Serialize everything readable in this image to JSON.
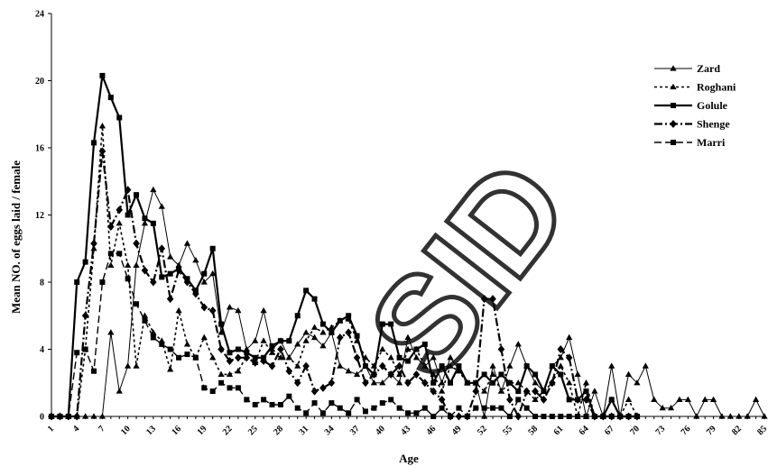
{
  "chart_data": {
    "type": "line",
    "xlabel": "Age",
    "ylabel": "Mean NO. of eggs laid / female",
    "xlim": [
      1,
      85
    ],
    "ylim": [
      0,
      24
    ],
    "yticks": [
      "0",
      "4",
      "8",
      "12",
      "16",
      "20",
      "24"
    ],
    "xticks": [
      "1",
      "4",
      "7",
      "10",
      "13",
      "16",
      "19",
      "22",
      "25",
      "28",
      "31",
      "34",
      "37",
      "40",
      "43",
      "46",
      "49",
      "52",
      "55",
      "58",
      "61",
      "64",
      "67",
      "70",
      "73",
      "76",
      "79",
      "82",
      "85"
    ],
    "legend_position": "top-right",
    "watermark": "SID",
    "series": [
      {
        "name": "Zard",
        "style": "solid-thin",
        "marker": "triangle",
        "x": [
          1,
          2,
          3,
          4,
          5,
          6,
          7,
          8,
          9,
          10,
          11,
          12,
          13,
          14,
          15,
          16,
          17,
          18,
          19,
          20,
          21,
          22,
          23,
          24,
          25,
          26,
          27,
          28,
          29,
          30,
          31,
          32,
          33,
          34,
          35,
          36,
          37,
          38,
          39,
          40,
          41,
          42,
          43,
          44,
          45,
          46,
          47,
          48,
          49,
          50,
          51,
          52,
          53,
          54,
          55,
          56,
          57,
          58,
          59,
          60,
          61,
          62,
          63,
          64,
          65,
          66,
          67,
          68,
          69,
          70,
          71,
          72,
          73,
          74,
          75,
          76,
          77,
          78,
          79,
          80,
          81,
          82,
          83,
          84,
          85
        ],
        "y": [
          0,
          0,
          0,
          0,
          0,
          0,
          0,
          5,
          1.5,
          3,
          9,
          11.5,
          13.5,
          12.5,
          9.5,
          9,
          10.3,
          9.3,
          8,
          8.5,
          5,
          6.5,
          6.3,
          4,
          4.5,
          6.3,
          4,
          4.5,
          3.5,
          4.3,
          5,
          4.7,
          4.2,
          5,
          3,
          2.7,
          2.5,
          3,
          2,
          2,
          2.5,
          2,
          4.7,
          3.5,
          3,
          3.5,
          2,
          3.5,
          2.8,
          2,
          2,
          0,
          3,
          1.5,
          3,
          4.3,
          3,
          2,
          1.5,
          3,
          3.5,
          4.7,
          2.5,
          0,
          1.5,
          0,
          3,
          0,
          2.5,
          2,
          3,
          1,
          0.5,
          0.5,
          1,
          1,
          0,
          1,
          1,
          0,
          0,
          0,
          0,
          1,
          0
        ]
      },
      {
        "name": "Roghani",
        "style": "dashed",
        "marker": "triangle",
        "x": [
          1,
          2,
          3,
          4,
          5,
          6,
          7,
          8,
          9,
          10,
          11,
          12,
          13,
          14,
          15,
          16,
          17,
          18,
          19,
          20,
          21,
          22,
          23,
          24,
          25,
          26,
          27,
          28,
          29,
          30,
          31,
          32,
          33,
          34,
          35,
          36,
          37,
          38,
          39,
          40,
          41,
          42,
          43,
          44,
          45,
          46,
          47,
          48,
          49,
          50,
          51,
          52,
          53,
          54,
          55,
          56,
          57,
          58,
          59,
          60,
          61,
          62,
          63,
          64,
          65,
          66,
          67,
          68,
          69,
          70
        ],
        "y": [
          0,
          0,
          0,
          0,
          4,
          10,
          17.3,
          9,
          11.5,
          9,
          3,
          6,
          5,
          4.5,
          2.8,
          6.3,
          4.3,
          3.5,
          4.7,
          3.5,
          2.5,
          2.5,
          2.7,
          3.6,
          3.2,
          4.5,
          3.8,
          3.5,
          3.5,
          3,
          4.5,
          5.3,
          5,
          5.3,
          5.7,
          5.8,
          4.5,
          3.5,
          3,
          4,
          3.5,
          2.5,
          4,
          4,
          3,
          2.5,
          1.5,
          3,
          2.7,
          2,
          2,
          1.5,
          2.5,
          1.5,
          2,
          2,
          1.5,
          1,
          1.5,
          2,
          3,
          2,
          0,
          2,
          0,
          0,
          1,
          0,
          1,
          0
        ]
      },
      {
        "name": "Golule",
        "style": "solid-thick",
        "marker": "square",
        "x": [
          1,
          2,
          3,
          4,
          5,
          6,
          7,
          8,
          9,
          10,
          11,
          12,
          13,
          14,
          15,
          16,
          17,
          18,
          19,
          20,
          21,
          22,
          23,
          24,
          25,
          26,
          27,
          28,
          29,
          30,
          31,
          32,
          33,
          34,
          35,
          36,
          37,
          38,
          39,
          40,
          41,
          42,
          43,
          44,
          45,
          46,
          47,
          48,
          49,
          50,
          51,
          52,
          53,
          54,
          55,
          56,
          57,
          58,
          59,
          60,
          61,
          62,
          63,
          64,
          65,
          66,
          67,
          68,
          69,
          70
        ],
        "y": [
          0,
          0,
          0,
          8,
          9.2,
          16.3,
          20.3,
          19,
          17.8,
          12,
          13.2,
          11.8,
          11.5,
          8.3,
          8.5,
          8.8,
          8.2,
          7.5,
          8.5,
          10,
          5.5,
          3.8,
          4,
          3.8,
          3.5,
          3.5,
          4.2,
          4.5,
          4.5,
          6,
          7.5,
          7,
          5.5,
          5,
          5.7,
          6,
          4.8,
          3,
          2.5,
          5.5,
          5.5,
          3.5,
          3.3,
          4,
          4.3,
          2,
          3,
          2,
          3,
          2,
          2,
          2.5,
          2,
          2.5,
          2,
          1.5,
          3,
          2.5,
          1.5,
          3,
          2.5,
          1,
          1,
          1.5,
          0,
          0,
          1,
          0,
          0,
          0
        ]
      },
      {
        "name": "Shenge",
        "style": "dash-dot-thick",
        "marker": "diamond",
        "x": [
          1,
          2,
          3,
          4,
          5,
          6,
          7,
          8,
          9,
          10,
          11,
          12,
          13,
          14,
          15,
          16,
          17,
          18,
          19,
          20,
          21,
          22,
          23,
          24,
          25,
          26,
          27,
          28,
          29,
          30,
          31,
          32,
          33,
          34,
          35,
          36,
          37,
          38,
          39,
          40,
          41,
          42,
          43,
          44,
          45,
          46,
          47,
          48,
          49,
          50,
          51,
          52,
          53,
          54,
          55,
          56,
          57,
          58,
          59,
          60,
          61,
          62,
          63,
          64,
          65,
          66,
          67,
          68,
          69,
          70
        ],
        "y": [
          0,
          0,
          0,
          0,
          6,
          10.3,
          15.8,
          11.3,
          12.3,
          13.5,
          10.3,
          8.7,
          8,
          10,
          7,
          8.7,
          8,
          7.3,
          6.5,
          6.3,
          4,
          3.3,
          3.5,
          3.5,
          3.2,
          3.3,
          3,
          4,
          2.7,
          2,
          3,
          1.5,
          1.7,
          2,
          4.7,
          5,
          3.5,
          2,
          2.5,
          3,
          2.5,
          3,
          2,
          2.5,
          2,
          1.5,
          1,
          0,
          0,
          0,
          1.5,
          7,
          7,
          4,
          1,
          0,
          1.5,
          1.5,
          1,
          2,
          4,
          3.5,
          1,
          1,
          0,
          0,
          0,
          0,
          0,
          0
        ]
      },
      {
        "name": "Marri",
        "style": "long-dash",
        "marker": "square",
        "x": [
          1,
          2,
          3,
          4,
          5,
          6,
          7,
          8,
          9,
          10,
          11,
          12,
          13,
          14,
          15,
          16,
          17,
          18,
          19,
          20,
          21,
          22,
          23,
          24,
          25,
          26,
          27,
          28,
          29,
          30,
          31,
          32,
          33,
          34,
          35,
          36,
          37,
          38,
          39,
          40,
          41,
          42,
          43,
          44,
          45,
          46,
          47,
          48,
          49,
          50,
          51,
          52,
          53,
          54,
          55,
          56,
          57,
          58,
          59,
          60,
          61,
          62,
          63,
          64,
          65,
          66,
          67,
          68,
          69,
          70
        ],
        "y": [
          0,
          0,
          0,
          3.8,
          4,
          2.7,
          8,
          9.7,
          9.7,
          8.2,
          6.7,
          5.7,
          4.7,
          4.3,
          4,
          3.5,
          3.7,
          3.5,
          1.7,
          1.5,
          2,
          1.7,
          1.7,
          1,
          0.7,
          1,
          0.7,
          0.7,
          1.2,
          0.5,
          0.2,
          0.8,
          0.2,
          0.8,
          0.5,
          0.2,
          1,
          0.3,
          0.5,
          0.8,
          1,
          0.5,
          0.2,
          0.2,
          0.5,
          0,
          0.5,
          0,
          0.5,
          0,
          0.5,
          0.5,
          0.5,
          0.5,
          0,
          1,
          0.5,
          0,
          0,
          0,
          0,
          0,
          0,
          0,
          0,
          0,
          0,
          0,
          0,
          0
        ]
      }
    ]
  }
}
